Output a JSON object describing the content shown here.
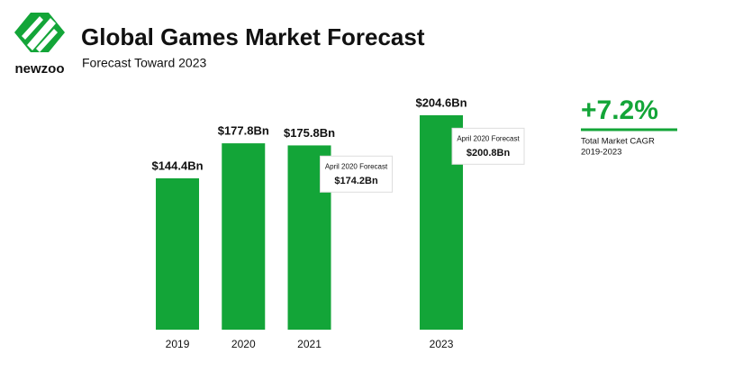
{
  "brand": "newzoo",
  "chart_data": {
    "type": "bar",
    "title": "Global Games Market Forecast",
    "subtitle": "Forecast Toward 2023",
    "categories": [
      "2019",
      "2020",
      "2021",
      null,
      "2023"
    ],
    "values": [
      144.4,
      177.8,
      175.8,
      null,
      204.6
    ],
    "value_labels": [
      "$144.4Bn",
      "$177.8Bn",
      "$175.8Bn",
      null,
      "$204.6Bn"
    ],
    "color": "#13a538",
    "ylim": [
      0,
      220
    ],
    "forecast": {
      "label": "April 2020 Forecast",
      "values": [
        null,
        null,
        174.2,
        null,
        200.8
      ],
      "value_labels": [
        null,
        null,
        "$174.2Bn",
        null,
        "$200.8Bn"
      ]
    },
    "cagr": {
      "value_label": "+7.2%",
      "label": "Total Market CAGR",
      "period": "2019-2023"
    }
  }
}
